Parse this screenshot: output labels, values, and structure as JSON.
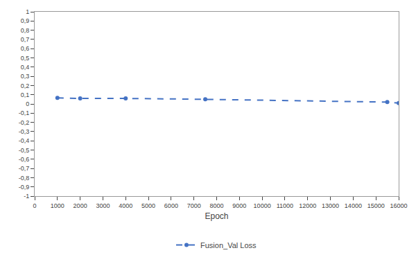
{
  "chart_data": {
    "type": "line",
    "xlabel": "Epoch",
    "x": [
      1000,
      2000,
      4000,
      7500,
      15500,
      16000
    ],
    "series": [
      {
        "name": "Fusion_Val Loss",
        "color": "#4472C4",
        "values": [
          0.065,
          0.06,
          0.06,
          0.05,
          0.02,
          0.01
        ],
        "line_style": "dashed",
        "marker": "circle"
      }
    ],
    "xlim": [
      0,
      16000
    ],
    "ylim": [
      -1,
      1.0
    ],
    "xticks": [
      0,
      1000,
      2000,
      3000,
      4000,
      5000,
      6000,
      7000,
      8000,
      9000,
      10000,
      11000,
      12000,
      13000,
      14000,
      15000,
      16000
    ],
    "yticks": [
      -1,
      {
        "value": -0.9,
        "label": "-0,9"
      },
      {
        "value": -0.8,
        "label": "-0,8"
      },
      {
        "value": -0.7,
        "label": "-0,7"
      },
      {
        "value": -0.6,
        "label": "-0,6"
      },
      {
        "value": -0.5,
        "label": "-0,5"
      },
      {
        "value": -0.4,
        "label": "-0,4"
      },
      {
        "value": -0.3,
        "label": "-0,3"
      },
      {
        "value": -0.2,
        "label": "-0,2"
      },
      {
        "value": -0.1,
        "label": "-0,1"
      },
      0,
      {
        "value": 0.1,
        "label": "0,1"
      },
      {
        "value": 0.2,
        "label": "0,2"
      },
      {
        "value": 0.3,
        "label": "0,3"
      },
      {
        "value": 0.4,
        "label": "0,4"
      },
      {
        "value": 0.5,
        "label": "0,5"
      },
      {
        "value": 0.6,
        "label": "0,6"
      },
      {
        "value": 0.7,
        "label": "0,7"
      },
      {
        "value": 0.8,
        "label": "0,8"
      },
      {
        "value": 0.9,
        "label": "0,9"
      },
      1
    ],
    "grid": false,
    "legend": "bottom"
  }
}
